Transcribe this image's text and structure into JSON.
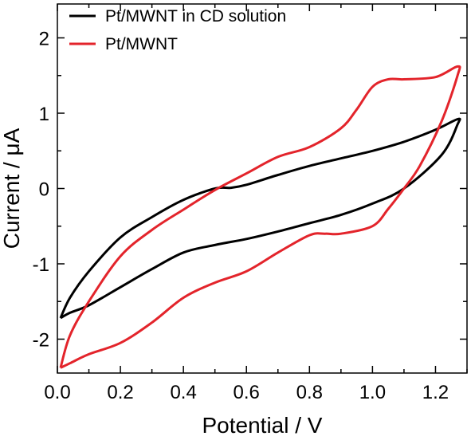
{
  "chart_data": {
    "type": "line",
    "title": "",
    "xlabel": "Potential / V",
    "ylabel": "Current / μA",
    "xlim": [
      0.0,
      1.3
    ],
    "ylim": [
      -2.45,
      2.45
    ],
    "x_ticks": [
      "0.0",
      "0.2",
      "0.4",
      "0.6",
      "0.8",
      "1.0",
      "1.2"
    ],
    "y_ticks": [
      "-2",
      "-1",
      "0",
      "1",
      "2"
    ],
    "x_tick_values": [
      0.0,
      0.2,
      0.4,
      0.6,
      0.8,
      1.0,
      1.2
    ],
    "y_tick_values": [
      -2,
      -1,
      0,
      1,
      2
    ],
    "grid": false,
    "legend_position": "top-left",
    "series": [
      {
        "name": "Pt/MWNT in CD solution",
        "color": "#000000",
        "x": [
          0.01,
          0.04,
          0.1,
          0.2,
          0.3,
          0.4,
          0.5,
          0.55,
          0.6,
          0.7,
          0.8,
          0.9,
          1.0,
          1.1,
          1.2,
          1.27,
          1.27,
          1.22,
          1.1,
          1.0,
          0.9,
          0.8,
          0.7,
          0.6,
          0.5,
          0.4,
          0.3,
          0.2,
          0.1,
          0.04,
          0.01
        ],
        "y": [
          -1.72,
          -1.45,
          -1.1,
          -0.65,
          -0.38,
          -0.15,
          0.0,
          0.01,
          0.05,
          0.18,
          0.3,
          0.4,
          0.5,
          0.62,
          0.78,
          0.92,
          0.85,
          0.45,
          0.0,
          -0.2,
          -0.35,
          -0.46,
          -0.57,
          -0.67,
          -0.75,
          -0.85,
          -1.07,
          -1.31,
          -1.55,
          -1.65,
          -1.72
        ]
      },
      {
        "name": "Pt/MWNT",
        "color": "#e3242b",
        "x": [
          0.01,
          0.04,
          0.1,
          0.2,
          0.3,
          0.4,
          0.5,
          0.6,
          0.7,
          0.8,
          0.9,
          0.95,
          1.0,
          1.05,
          1.1,
          1.2,
          1.27,
          1.27,
          1.22,
          1.15,
          1.1,
          1.05,
          1.0,
          0.9,
          0.85,
          0.8,
          0.7,
          0.6,
          0.5,
          0.4,
          0.3,
          0.2,
          0.1,
          0.04,
          0.01
        ],
        "y": [
          -2.38,
          -1.95,
          -1.5,
          -0.9,
          -0.55,
          -0.28,
          -0.02,
          0.2,
          0.42,
          0.55,
          0.8,
          1.05,
          1.35,
          1.45,
          1.45,
          1.48,
          1.62,
          1.5,
          0.9,
          0.3,
          0.0,
          -0.27,
          -0.5,
          -0.6,
          -0.6,
          -0.62,
          -0.85,
          -1.1,
          -1.25,
          -1.45,
          -1.78,
          -2.05,
          -2.2,
          -2.32,
          -2.38
        ]
      }
    ]
  }
}
